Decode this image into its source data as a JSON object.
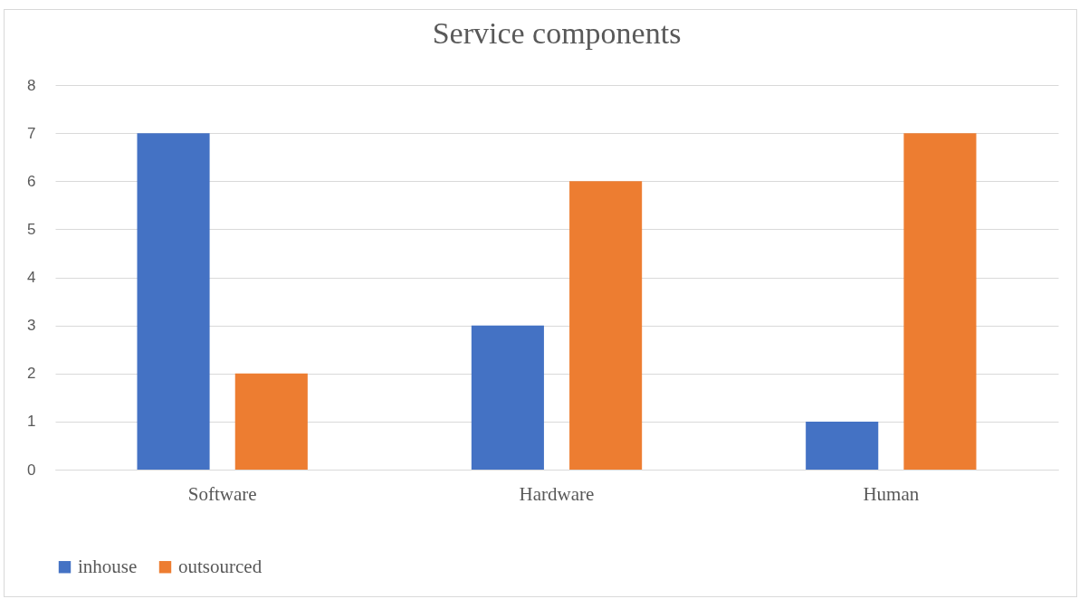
{
  "chart_data": {
    "type": "bar",
    "title": "Service components",
    "categories": [
      "Software",
      "Hardware",
      "Human"
    ],
    "series": [
      {
        "name": "inhouse",
        "color": "#4472c4",
        "values": [
          7,
          3,
          1
        ]
      },
      {
        "name": "outsourced",
        "color": "#ed7d31",
        "values": [
          2,
          6,
          7
        ]
      }
    ],
    "ylim": [
      0,
      8
    ],
    "yticks": [
      0,
      1,
      2,
      3,
      4,
      5,
      6,
      7,
      8
    ],
    "grid": "y",
    "legend": "bottom"
  }
}
